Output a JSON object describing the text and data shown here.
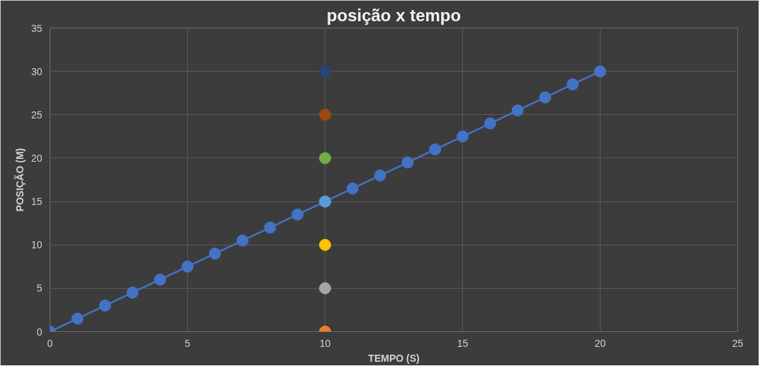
{
  "chart_data": {
    "type": "line",
    "title": "posição x tempo",
    "xlabel": "TEMPO (S)",
    "ylabel": "POSIÇÃO (M)",
    "xlim": [
      0,
      25
    ],
    "ylim": [
      0,
      35
    ],
    "xticks": [
      0,
      5,
      10,
      15,
      20,
      25
    ],
    "yticks": [
      0,
      5,
      10,
      15,
      20,
      25,
      30,
      35
    ],
    "grid": true,
    "marker": "circle",
    "line_style": "solid",
    "series": [
      {
        "color": "#4472c4",
        "x": [
          0,
          1,
          2,
          3,
          4,
          5,
          6,
          7,
          8,
          9,
          10,
          11,
          12,
          13,
          14,
          15,
          16,
          17,
          18,
          19,
          20
        ],
        "values": [
          0,
          1.5,
          3,
          4.5,
          6,
          7.5,
          9,
          10.5,
          12,
          13.5,
          15,
          16.5,
          18,
          19.5,
          21,
          22.5,
          24,
          25.5,
          27,
          28.5,
          30
        ]
      },
      {
        "type": "scatter",
        "colors": [
          "#ed7d31",
          "#a5a5a5",
          "#ffc000",
          "#5b9bd5",
          "#70ad47",
          "#9e480e",
          "#264478"
        ],
        "x": [
          10,
          10,
          10,
          10,
          10,
          10,
          10
        ],
        "values": [
          0,
          5,
          10,
          15,
          20,
          25,
          30
        ]
      }
    ]
  }
}
